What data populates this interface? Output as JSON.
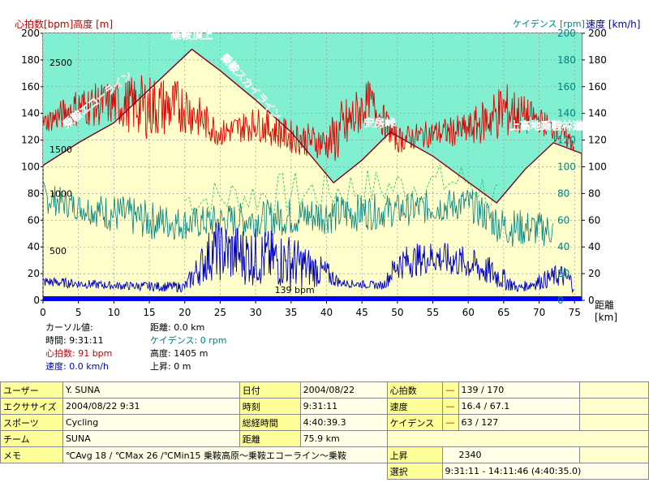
{
  "header": {
    "left": "心拍数[bpm]高度 [m]",
    "right_cadence": "ケイデンス [rpm]",
    "right_speed": "速度 [km/h]"
  },
  "colors": {
    "plot_bg": "#ffffcc",
    "sky": "#80f0d0",
    "heart_rate": "#e00000",
    "altitude": "#800020",
    "cadence": "#008080",
    "cadence_dashed": "#20c060",
    "speed": "#0000c0",
    "distance_bar": "#0000ff"
  },
  "chart_data": {
    "type": "line",
    "xlabel": "距離 [km]",
    "xlim": [
      0,
      76
    ],
    "x_ticks": [
      0,
      5,
      10,
      15,
      20,
      25,
      30,
      35,
      40,
      45,
      50,
      55,
      60,
      65,
      70,
      75
    ],
    "y_left_ticks": [
      0,
      20,
      40,
      60,
      80,
      100,
      120,
      140,
      160,
      180,
      200
    ],
    "y_right_ticks": [
      0,
      20,
      40,
      60,
      80,
      100,
      120,
      140,
      160,
      180,
      200
    ],
    "altitude_ticks": [
      {
        "label": "2500",
        "y": 178
      },
      {
        "label": "1500",
        "y": 113
      },
      {
        "label": "1000",
        "y": 80
      },
      {
        "label": "500",
        "y": 37
      }
    ],
    "altitude_profile": [
      {
        "x": 0,
        "y": 101
      },
      {
        "x": 5,
        "y": 118
      },
      {
        "x": 10,
        "y": 133
      },
      {
        "x": 15,
        "y": 158
      },
      {
        "x": 21,
        "y": 188
      },
      {
        "x": 25,
        "y": 172
      },
      {
        "x": 30,
        "y": 150
      },
      {
        "x": 35,
        "y": 126
      },
      {
        "x": 41,
        "y": 88
      },
      {
        "x": 45,
        "y": 105
      },
      {
        "x": 49,
        "y": 126
      },
      {
        "x": 55,
        "y": 108
      },
      {
        "x": 64,
        "y": 73
      },
      {
        "x": 68,
        "y": 98
      },
      {
        "x": 72,
        "y": 118
      },
      {
        "x": 76,
        "y": 110
      }
    ],
    "heart_rate_bands": [
      {
        "x": 0,
        "lo": 125,
        "hi": 140
      },
      {
        "x": 5,
        "lo": 130,
        "hi": 160
      },
      {
        "x": 10,
        "lo": 130,
        "hi": 165
      },
      {
        "x": 15,
        "lo": 120,
        "hi": 170
      },
      {
        "x": 20,
        "lo": 125,
        "hi": 165
      },
      {
        "x": 25,
        "lo": 115,
        "hi": 135
      },
      {
        "x": 30,
        "lo": 120,
        "hi": 145
      },
      {
        "x": 35,
        "lo": 110,
        "hi": 135
      },
      {
        "x": 40,
        "lo": 105,
        "hi": 130
      },
      {
        "x": 42,
        "lo": 100,
        "hi": 150
      },
      {
        "x": 46,
        "lo": 135,
        "hi": 165
      },
      {
        "x": 50,
        "lo": 110,
        "hi": 130
      },
      {
        "x": 55,
        "lo": 115,
        "hi": 135
      },
      {
        "x": 60,
        "lo": 115,
        "hi": 140
      },
      {
        "x": 65,
        "lo": 120,
        "hi": 165
      },
      {
        "x": 70,
        "lo": 125,
        "hi": 145
      },
      {
        "x": 75,
        "lo": 110,
        "hi": 125
      }
    ],
    "cadence_bands": [
      {
        "x": 0,
        "lo": 65,
        "hi": 90
      },
      {
        "x": 5,
        "lo": 60,
        "hi": 80
      },
      {
        "x": 10,
        "lo": 50,
        "hi": 80
      },
      {
        "x": 15,
        "lo": 45,
        "hi": 75
      },
      {
        "x": 20,
        "lo": 45,
        "hi": 70
      },
      {
        "x": 42,
        "lo": 50,
        "hi": 80
      },
      {
        "x": 50,
        "lo": 55,
        "hi": 80
      },
      {
        "x": 60,
        "lo": 60,
        "hi": 85
      },
      {
        "x": 65,
        "lo": 40,
        "hi": 70
      },
      {
        "x": 72,
        "lo": 40,
        "hi": 65
      }
    ],
    "speed_bands": [
      {
        "x": 0,
        "lo": 10,
        "hi": 18
      },
      {
        "x": 10,
        "lo": 8,
        "hi": 14
      },
      {
        "x": 20,
        "lo": 6,
        "hi": 14
      },
      {
        "x": 24,
        "lo": 15,
        "hi": 60
      },
      {
        "x": 30,
        "lo": 10,
        "hi": 55
      },
      {
        "x": 35,
        "lo": 8,
        "hi": 50
      },
      {
        "x": 40,
        "lo": 10,
        "hi": 30
      },
      {
        "x": 42,
        "lo": 10,
        "hi": 16
      },
      {
        "x": 48,
        "lo": 8,
        "hi": 14
      },
      {
        "x": 50,
        "lo": 15,
        "hi": 40
      },
      {
        "x": 55,
        "lo": 20,
        "hi": 45
      },
      {
        "x": 60,
        "lo": 15,
        "hi": 40
      },
      {
        "x": 64,
        "lo": 8,
        "hi": 30
      },
      {
        "x": 67,
        "lo": 6,
        "hi": 12
      },
      {
        "x": 73,
        "lo": 10,
        "hi": 28
      },
      {
        "x": 75,
        "lo": 5,
        "hi": 20
      }
    ],
    "avg_hr_label": "139 bpm",
    "annotations": [
      {
        "text": "乗鞍頂上",
        "x": 21,
        "y": 196,
        "rotate": 0
      },
      {
        "text": "乗鞍エコーライン",
        "x": 8,
        "y": 148,
        "rotate": -38
      },
      {
        "text": "乗鞍スカイライン",
        "x": 29,
        "y": 158,
        "rotate": 48
      },
      {
        "text": "安房峠",
        "x": 47.5,
        "y": 130,
        "rotate": 0
      },
      {
        "text": "上高地乗鞍林道",
        "x": 71,
        "y": 128,
        "rotate": 0
      }
    ]
  },
  "cursor_info": {
    "cursor_label": "カーソル値:",
    "time": "時間: 9:31:11",
    "heart_rate": "心拍数: 91 bpm",
    "speed": "速度: 0.0 km/h",
    "distance": "距離: 0.0 km",
    "cadence": "ケイデンス: 0 rpm",
    "altitude": "高度: 1405 m",
    "ascent": "上昇: 0 m"
  },
  "table": {
    "user_label": "ユーザー",
    "user": "Y. SUNA",
    "date_label": "日付",
    "date": "2004/08/22",
    "hr_label": "心拍数",
    "hr_dash": "—",
    "hr_value": "139 / 170",
    "exercise_label": "エクササイズ",
    "exercise": "2004/08/22 9:31",
    "time_label": "時刻",
    "time": "9:31:11",
    "speed_label": "速度",
    "speed_dash": "—",
    "speed_value": "16.4 / 67.1",
    "sport_label": "スポーツ",
    "sport": "Cycling",
    "duration_label": "総経時間",
    "duration": "4:40:39.3",
    "cadence_label": "ケイデンス",
    "cadence_dash": "—",
    "cadence_value": "63 / 127",
    "team_label": "チーム",
    "team": "SUNA",
    "distance_label": "距離",
    "distance": "75.9 km",
    "memo_label": "メモ",
    "memo": "℃Avg 18 / ℃Max 26 /℃Min15 乗鞍高原～乗鞍エコーライン～乗鞍",
    "ascent_label": "上昇",
    "ascent": "2340",
    "select_label": "選択",
    "select": "9:31:11 - 14:11:46 (4:40:35.0)"
  }
}
